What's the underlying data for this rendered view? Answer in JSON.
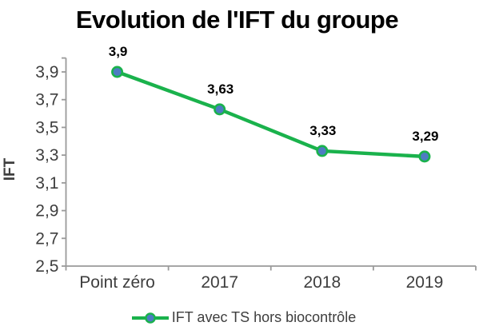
{
  "chart_data": {
    "type": "line",
    "title": "Evolution de l'IFT du groupe",
    "ylabel": "IFT",
    "xlabel": "",
    "categories": [
      "Point zéro",
      "2017",
      "2018",
      "2019"
    ],
    "series": [
      {
        "name": "IFT avec TS hors biocontrôle",
        "values": [
          3.9,
          3.63,
          3.33,
          3.29
        ],
        "data_labels": [
          "3,9",
          "3,63",
          "3,33",
          "3,29"
        ]
      }
    ],
    "ylim": [
      2.5,
      4.0
    ],
    "ytick_step": 0.2,
    "ytick_labels": [
      "2,5",
      "2,7",
      "2,9",
      "3,1",
      "3,3",
      "3,5",
      "3,7",
      "3,9"
    ],
    "grid": false,
    "legend_position": "bottom",
    "colors": {
      "line": "#1ab24c",
      "marker_fill": "#4d7cc2",
      "marker_stroke": "#1ab24c",
      "axis": "#9a9a9a",
      "tick_label": "#3e3e3e",
      "data_label": "#000000",
      "title": "#000000"
    }
  }
}
